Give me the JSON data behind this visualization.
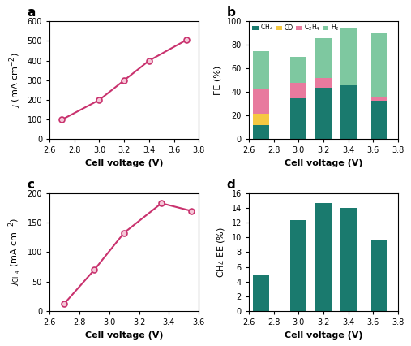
{
  "a_x": [
    2.7,
    3.0,
    3.2,
    3.4,
    3.7
  ],
  "a_y": [
    100,
    200,
    300,
    400,
    505
  ],
  "a_xlabel": "Cell voltage (V)",
  "a_ylim": [
    0,
    600
  ],
  "a_xlim": [
    2.6,
    3.8
  ],
  "a_yticks": [
    0,
    100,
    200,
    300,
    400,
    500,
    600
  ],
  "a_xticks": [
    2.6,
    2.8,
    3.0,
    3.2,
    3.4,
    3.6,
    3.8
  ],
  "b_voltages": [
    2.7,
    3.0,
    3.2,
    3.4,
    3.65
  ],
  "b_CH4": [
    12,
    35,
    44,
    46,
    33
  ],
  "b_CO": [
    10,
    0,
    0,
    0,
    0
  ],
  "b_C2H4": [
    20,
    13,
    8,
    0,
    3
  ],
  "b_H2": [
    33,
    22,
    34,
    48,
    54
  ],
  "b_xlabel": "Cell voltage (V)",
  "b_ylim": [
    0,
    100
  ],
  "b_xlim": [
    2.6,
    3.8
  ],
  "b_yticks": [
    0,
    20,
    40,
    60,
    80,
    100
  ],
  "b_xticks": [
    2.6,
    2.8,
    3.0,
    3.2,
    3.4,
    3.6,
    3.8
  ],
  "color_CH4": "#1a7a6e",
  "color_CO": "#f5c842",
  "color_C2H4": "#e87a9e",
  "color_H2": "#7ec8a0",
  "c_x": [
    2.7,
    2.9,
    3.1,
    3.35,
    3.55
  ],
  "c_y": [
    13,
    70,
    133,
    183,
    170
  ],
  "c_xlabel": "Cell voltage (V)",
  "c_ylim": [
    0,
    200
  ],
  "c_xlim": [
    2.6,
    3.6
  ],
  "c_yticks": [
    0,
    50,
    100,
    150,
    200
  ],
  "c_xticks": [
    2.6,
    2.8,
    3.0,
    3.2,
    3.4,
    3.6
  ],
  "d_voltages": [
    2.7,
    3.0,
    3.2,
    3.4,
    3.65
  ],
  "d_EE": [
    4.9,
    12.4,
    14.7,
    14.0,
    9.7
  ],
  "d_xlabel": "Cell voltage (V)",
  "d_ylim": [
    0,
    16
  ],
  "d_xlim": [
    2.6,
    3.8
  ],
  "d_yticks": [
    0,
    2,
    4,
    6,
    8,
    10,
    12,
    14,
    16
  ],
  "d_xticks": [
    2.6,
    2.8,
    3.0,
    3.2,
    3.4,
    3.6,
    3.8
  ],
  "d_bar_color": "#1a7a6e",
  "line_color": "#c9326e",
  "marker_face": "#f5c8d8",
  "bar_width": 0.13,
  "label_fontsize": 8,
  "tick_fontsize": 7,
  "panel_label_fontsize": 11
}
